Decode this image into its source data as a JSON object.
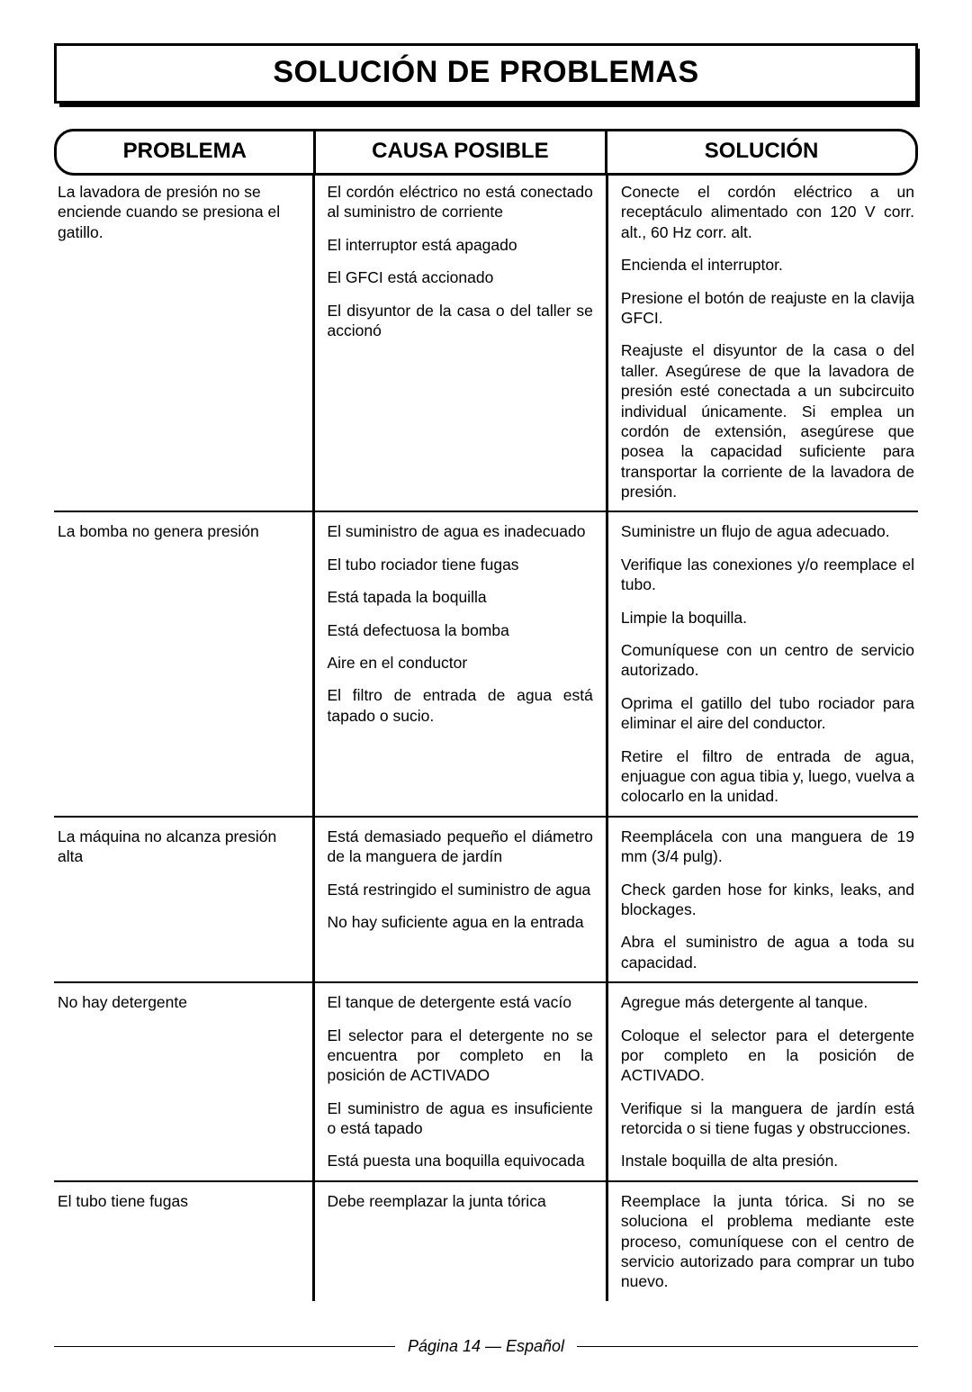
{
  "title": "SOLUCIÓN DE PROBLEMAS",
  "headers": {
    "problem": "PROBLEMA",
    "cause": "CAUSA POSIBLE",
    "solution": "SOLUCIÓN"
  },
  "rows": [
    {
      "problem": "La lavadora de presión no se enciende cuando se presiona el gatillo.",
      "pairs": [
        {
          "cause": "El cordón eléctrico no está conectado al suministro de corriente",
          "solution": "Conecte el cordón eléctrico a un receptáculo alimentado con 120 V corr. alt., 60 Hz corr. alt."
        },
        {
          "cause": "El interruptor está apagado",
          "solution": "Encienda el interruptor."
        },
        {
          "cause": "El GFCI está accionado",
          "solution": "Presione el botón de reajuste en la clavija GFCI."
        },
        {
          "cause": "El disyuntor de la casa o del taller se accionó",
          "solution": "Reajuste el disyuntor de la casa o del taller. Asegúrese de que la lavadora de presión esté conectada a un subcircuito individual únicamente. Si emplea un cordón de extensión, asegúrese que posea la capacidad suficiente para transportar la corriente de la lavadora de presión."
        }
      ]
    },
    {
      "problem": "La bomba no genera presión",
      "pairs": [
        {
          "cause": "El suministro de agua es inadecuado",
          "solution": "Suministre un flujo de agua adecuado."
        },
        {
          "cause": "El tubo rociador tiene fugas",
          "solution": "Verifique las conexiones y/o reemplace el tubo."
        },
        {
          "cause": "Está tapada la boquilla",
          "solution": "Limpie la boquilla."
        },
        {
          "cause": "Está defectuosa la bomba",
          "solution": "Comuníquese con un centro de servicio autorizado."
        },
        {
          "cause": "Aire en el conductor",
          "solution": "Oprima el gatillo del tubo rociador para eliminar el aire del conductor."
        },
        {
          "cause": "El filtro de entrada de agua está tapado o sucio.",
          "solution": "Retire el filtro de entrada de agua, enjuague con agua tibia y, luego, vuelva a colocarlo en la unidad."
        }
      ]
    },
    {
      "problem": "La máquina no alcanza presión alta",
      "pairs": [
        {
          "cause": "Está demasiado pequeño el diámetro de la manguera de jardín",
          "solution": "Reemplácela con una manguera de 19 mm (3/4 pulg)."
        },
        {
          "cause": "Está restringido el suministro de agua",
          "solution": "Check garden hose for kinks, leaks, and blockages."
        },
        {
          "cause": "No hay suficiente agua en la entrada",
          "solution": "Abra el suministro de agua a toda su capacidad."
        }
      ]
    },
    {
      "problem": "No hay detergente",
      "pairs": [
        {
          "cause": "El tanque de detergente está vacío",
          "solution": "Agregue más detergente al tanque."
        },
        {
          "cause": "El selector para el detergente no se encuentra por completo en la posición de ACTIVADO",
          "solution": "Coloque el selector para el detergente por completo en la posición de ACTIVADO."
        },
        {
          "cause": "El suministro de agua es insuficiente o está tapado",
          "solution": "Verifique si la manguera de jardín está retorcida o si tiene fugas y obstrucciones."
        },
        {
          "cause": "Está puesta una boquilla equivocada",
          "solution": "Instale boquilla de alta presión."
        }
      ]
    },
    {
      "problem": "El tubo tiene fugas",
      "pairs": [
        {
          "cause": "Debe reemplazar la junta tórica",
          "solution": "Reemplace la junta tórica. Si no se soluciona el problema mediante este proceso, comuníquese con el centro de servicio autorizado para comprar un tubo nuevo."
        }
      ]
    }
  ],
  "footer": "Página 14  —  Español"
}
